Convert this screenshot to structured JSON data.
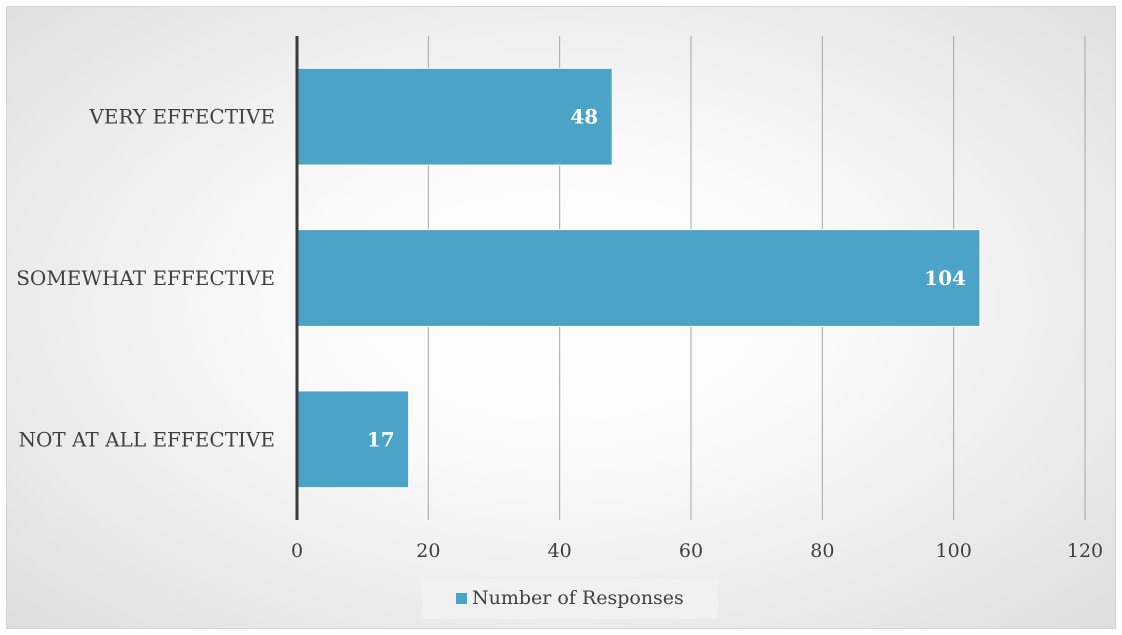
{
  "chart_data": {
    "type": "bar",
    "orientation": "horizontal",
    "categories": [
      "VERY EFFECTIVE",
      "SOMEWHAT EFFECTIVE",
      "NOT AT ALL EFFECTIVE"
    ],
    "series": [
      {
        "name": "Number of Responses",
        "values": [
          48,
          104,
          17
        ]
      }
    ],
    "title": "",
    "xlabel": "",
    "ylabel": "",
    "xlim": [
      0,
      120
    ],
    "xticks": [
      "0",
      "20",
      "40",
      "60",
      "80",
      "100",
      "120"
    ],
    "grid": true,
    "legend": "bottom-center",
    "bar_color": "#4ba3c7"
  }
}
